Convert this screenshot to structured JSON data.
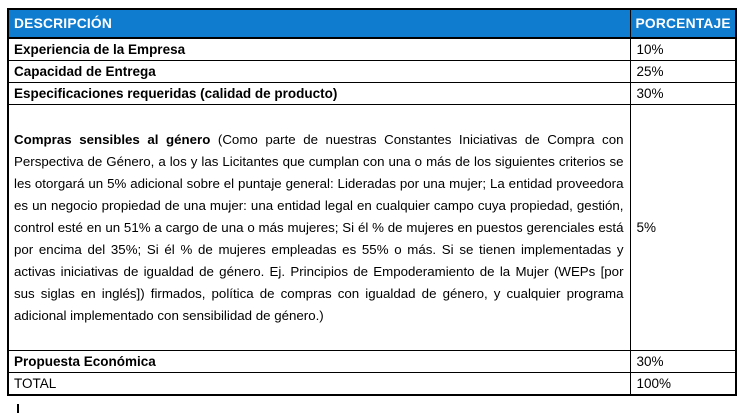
{
  "colors": {
    "header_bg": "#0f7cd0",
    "header_text": "#ffffff",
    "border": "#000000",
    "body_text": "#000000",
    "page_bg": "#ffffff"
  },
  "table": {
    "header": {
      "columns": [
        "DESCRIPCIÓN",
        "PORCENTAJE"
      ]
    },
    "rows": [
      {
        "description": "Experiencia de la Empresa",
        "percentage": "10%"
      },
      {
        "description": "Capacidad de Entrega",
        "percentage": "25%"
      },
      {
        "description": "Especificaciones requeridas (calidad de producto)",
        "percentage": "30%"
      },
      {
        "description_bold": "Compras sensibles al género",
        "description_rest": " (Como parte de nuestras Constantes Iniciativas de Compra con Perspectiva de Género, a los y las Licitantes que cumplan con una o más de los siguientes criterios se les otorgará un 5% adicional sobre el puntaje general: Lideradas por una mujer; La entidad proveedora es un negocio propiedad de una mujer: una entidad legal en cualquier campo cuya propiedad, gestión, control esté en un 51% a cargo de una o más mujeres; Si él % de mujeres en puestos gerenciales está por encima del 35%; Si él % de mujeres empleadas es 55% o más. Si se tienen implementadas y activas iniciativas de igualdad de género. Ej. Principios de Empoderamiento de la Mujer (WEPs [por sus siglas en inglés]) firmados, política de compras con igualdad de género, y cualquier programa adicional implementado con sensibilidad de género.)",
        "percentage": "5%"
      },
      {
        "description": "Propuesta Económica",
        "percentage": "30%"
      },
      {
        "description": "TOTAL",
        "percentage": "100%"
      }
    ]
  }
}
